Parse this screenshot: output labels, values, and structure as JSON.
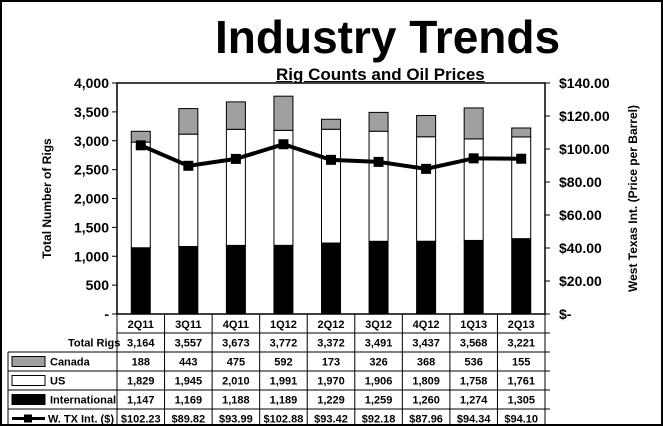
{
  "chart_data": {
    "type": "bar",
    "title": "Industry Trends",
    "subtitle": "Rig Counts and Oil Prices",
    "ylabel": "Total Number of Rigs",
    "y2label": "West Texas Int. (Price per Barrel)",
    "ylim": [
      0,
      4000
    ],
    "y2lim": [
      0,
      140
    ],
    "yticks": [
      "-",
      "500",
      "1,000",
      "1,500",
      "2,000",
      "2,500",
      "3,000",
      "3,500",
      "4,000"
    ],
    "y2ticks": [
      "$-",
      "$20.00",
      "$40.00",
      "$60.00",
      "$80.00",
      "$100.00",
      "$120.00",
      "$140.00"
    ],
    "categories": [
      "2Q11",
      "3Q11",
      "4Q11",
      "1Q12",
      "2Q12",
      "3Q12",
      "4Q12",
      "1Q13",
      "2Q13"
    ],
    "stacked": true,
    "series": [
      {
        "name": "International",
        "kind": "bar",
        "color": "#000000",
        "values": [
          1147,
          1169,
          1188,
          1189,
          1229,
          1259,
          1260,
          1274,
          1305
        ],
        "labels": [
          "1,147",
          "1,169",
          "1,188",
          "1,189",
          "1,229",
          "1,259",
          "1,260",
          "1,274",
          "1,305"
        ]
      },
      {
        "name": "US",
        "kind": "bar",
        "color": "#ffffff",
        "values": [
          1829,
          1945,
          2010,
          1991,
          1970,
          1906,
          1809,
          1758,
          1761
        ],
        "labels": [
          "1,829",
          "1,945",
          "2,010",
          "1,991",
          "1,970",
          "1,906",
          "1,809",
          "1,758",
          "1,761"
        ]
      },
      {
        "name": "Canada",
        "kind": "bar",
        "color": "#a0a0a0",
        "values": [
          188,
          443,
          475,
          592,
          173,
          326,
          368,
          536,
          155
        ],
        "labels": [
          "188",
          "443",
          "475",
          "592",
          "173",
          "326",
          "368",
          "536",
          "155"
        ]
      },
      {
        "name": "W. TX Int. ($)",
        "kind": "line",
        "axis": "right",
        "color": "#000000",
        "values": [
          102.23,
          89.82,
          93.99,
          102.88,
          93.42,
          92.18,
          87.96,
          94.34,
          94.1
        ],
        "labels": [
          "$102.23",
          "$89.82",
          "$93.99",
          "$102.88",
          "$93.42",
          "$92.18",
          "$87.96",
          "$94.34",
          "$94.10"
        ]
      }
    ],
    "total_rigs": {
      "name": "Total Rigs",
      "values": [
        3164,
        3557,
        3673,
        3772,
        3372,
        3491,
        3437,
        3568,
        3221
      ],
      "labels": [
        "3,164",
        "3,557",
        "3,673",
        "3,772",
        "3,372",
        "3,491",
        "3,437",
        "3,568",
        "3,221"
      ]
    },
    "table_row_order": [
      "total",
      "Canada",
      "US",
      "International",
      "W. TX Int. ($)"
    ],
    "grid": false,
    "legend": "data-table"
  }
}
